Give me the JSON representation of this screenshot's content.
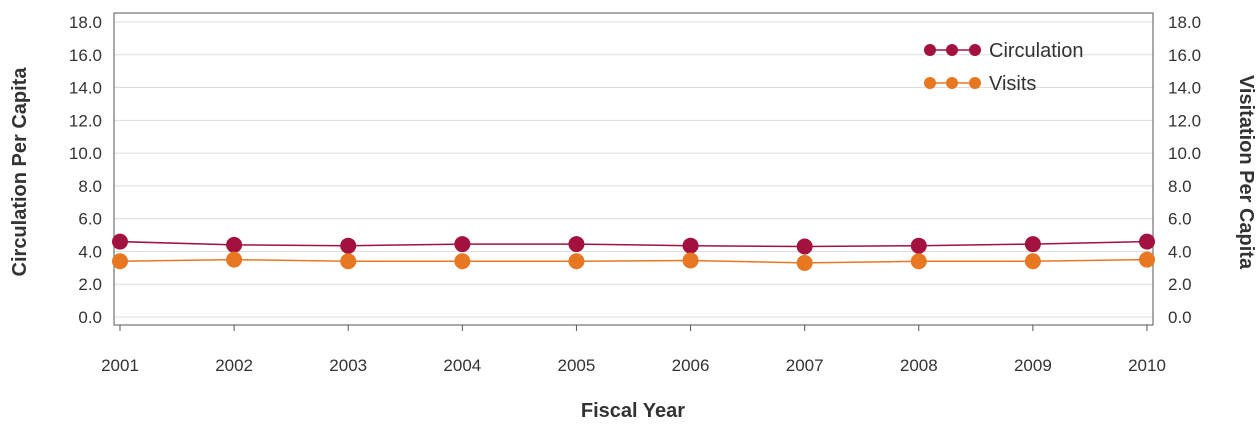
{
  "chart_data": {
    "type": "line",
    "title": "",
    "xlabel": "Fiscal Year",
    "ylabel": "Circulation Per Capita",
    "y2label": "Visitation Per Capita",
    "categories": [
      "2001",
      "2002",
      "2003",
      "2004",
      "2005",
      "2006",
      "2007",
      "2008",
      "2009",
      "2010"
    ],
    "ylim": [
      0,
      18
    ],
    "y2lim": [
      0,
      18
    ],
    "yticks": [
      "0.0",
      "2.0",
      "4.0",
      "6.0",
      "8.0",
      "10.0",
      "12.0",
      "14.0",
      "16.0",
      "18.0"
    ],
    "grid": true,
    "legend_position": "top-right",
    "series": [
      {
        "name": "Circulation",
        "color": "#a3123f",
        "values": [
          4.6,
          4.4,
          4.35,
          4.45,
          4.45,
          4.35,
          4.3,
          4.35,
          4.45,
          4.6
        ]
      },
      {
        "name": "Visits",
        "color": "#e87722",
        "values": [
          3.4,
          3.5,
          3.4,
          3.4,
          3.4,
          3.45,
          3.3,
          3.4,
          3.4,
          3.5
        ]
      }
    ]
  }
}
